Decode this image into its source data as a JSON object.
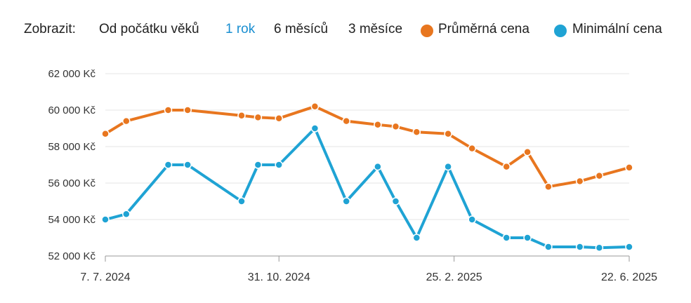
{
  "range_selector": {
    "label": "Zobrazit:",
    "options": [
      "Od počátku věků",
      "1 rok",
      "6 měsíců",
      "3 měsíce"
    ],
    "active_index": 1
  },
  "colors": {
    "active_option": "#1a8fd1",
    "average": "#e8761f",
    "minimum": "#1fa3d4",
    "grid": "#e6e6e6",
    "axis": "#999999"
  },
  "chart_data": {
    "type": "line",
    "y_tick_labels": [
      "62 000 Kč",
      "60 000 Kč",
      "58 000 Kč",
      "56 000 Kč",
      "54 000 Kč",
      "52 000 Kč"
    ],
    "y_ticks": [
      62000,
      60000,
      58000,
      56000,
      54000,
      52000
    ],
    "ylim": [
      52000,
      62000
    ],
    "x_tick_labels": [
      "7. 7. 2024",
      "31. 10. 2024",
      "25. 2. 2025",
      "22. 6. 2025"
    ],
    "x_ticks": [
      "2024-07-07",
      "2024-10-31",
      "2025-02-25",
      "2025-06-22"
    ],
    "xlim": [
      "2024-07-07",
      "2025-06-22"
    ],
    "grid": "horizontal",
    "legend_position": "top-right",
    "series": [
      {
        "name": "Průměrná cena",
        "color": "#e8761f",
        "points": [
          [
            "2024-07-07",
            58700
          ],
          [
            "2024-07-21",
            59400
          ],
          [
            "2024-08-18",
            60000
          ],
          [
            "2024-08-31",
            60000
          ],
          [
            "2024-10-06",
            59700
          ],
          [
            "2024-10-17",
            59600
          ],
          [
            "2024-10-31",
            59550
          ],
          [
            "2024-11-24",
            60200
          ],
          [
            "2024-12-15",
            59400
          ],
          [
            "2025-01-05",
            59200
          ],
          [
            "2025-01-17",
            59100
          ],
          [
            "2025-01-31",
            58800
          ],
          [
            "2025-02-21",
            58700
          ],
          [
            "2025-03-09",
            57900
          ],
          [
            "2025-04-01",
            56900
          ],
          [
            "2025-04-15",
            57700
          ],
          [
            "2025-04-29",
            55800
          ],
          [
            "2025-05-20",
            56100
          ],
          [
            "2025-06-02",
            56400
          ],
          [
            "2025-06-22",
            56850
          ]
        ]
      },
      {
        "name": "Minimální cena",
        "color": "#1fa3d4",
        "points": [
          [
            "2024-07-07",
            54000
          ],
          [
            "2024-07-21",
            54300
          ],
          [
            "2024-08-18",
            57000
          ],
          [
            "2024-08-31",
            57000
          ],
          [
            "2024-10-06",
            55000
          ],
          [
            "2024-10-17",
            57000
          ],
          [
            "2024-10-31",
            57000
          ],
          [
            "2024-11-24",
            59000
          ],
          [
            "2024-12-15",
            55000
          ],
          [
            "2025-01-05",
            56900
          ],
          [
            "2025-01-17",
            55000
          ],
          [
            "2025-01-31",
            53000
          ],
          [
            "2025-02-21",
            56900
          ],
          [
            "2025-03-09",
            54000
          ],
          [
            "2025-04-01",
            53000
          ],
          [
            "2025-04-15",
            53000
          ],
          [
            "2025-04-29",
            52500
          ],
          [
            "2025-05-20",
            52500
          ],
          [
            "2025-06-02",
            52450
          ],
          [
            "2025-06-22",
            52500
          ]
        ]
      }
    ]
  }
}
